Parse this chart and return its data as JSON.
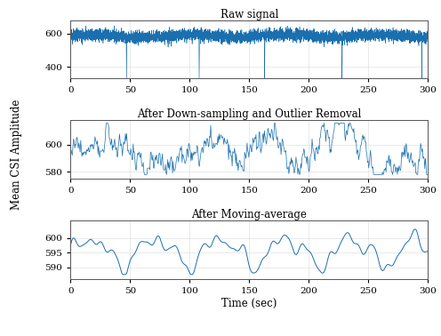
{
  "title1": "Raw signal",
  "title2": "After Down-sampling and Outlier Removal",
  "title3": "After Moving-average",
  "ylabel": "Mean CSI Amplitude",
  "xlabel": "Time (sec)",
  "line_color": "#1a6faf",
  "xlim": [
    0,
    300
  ],
  "ylim1": [
    330,
    680
  ],
  "ylim2": [
    575,
    618
  ],
  "ylim3": [
    586,
    606
  ],
  "yticks1": [
    400,
    600
  ],
  "yticks2": [
    580,
    600
  ],
  "yticks3": [
    590,
    595,
    600
  ],
  "xticks": [
    0,
    50,
    100,
    150,
    200,
    250,
    300
  ],
  "spike_positions": [
    47,
    108,
    163,
    228,
    295
  ],
  "spike_value": 310,
  "bg_color": "#ffffff"
}
